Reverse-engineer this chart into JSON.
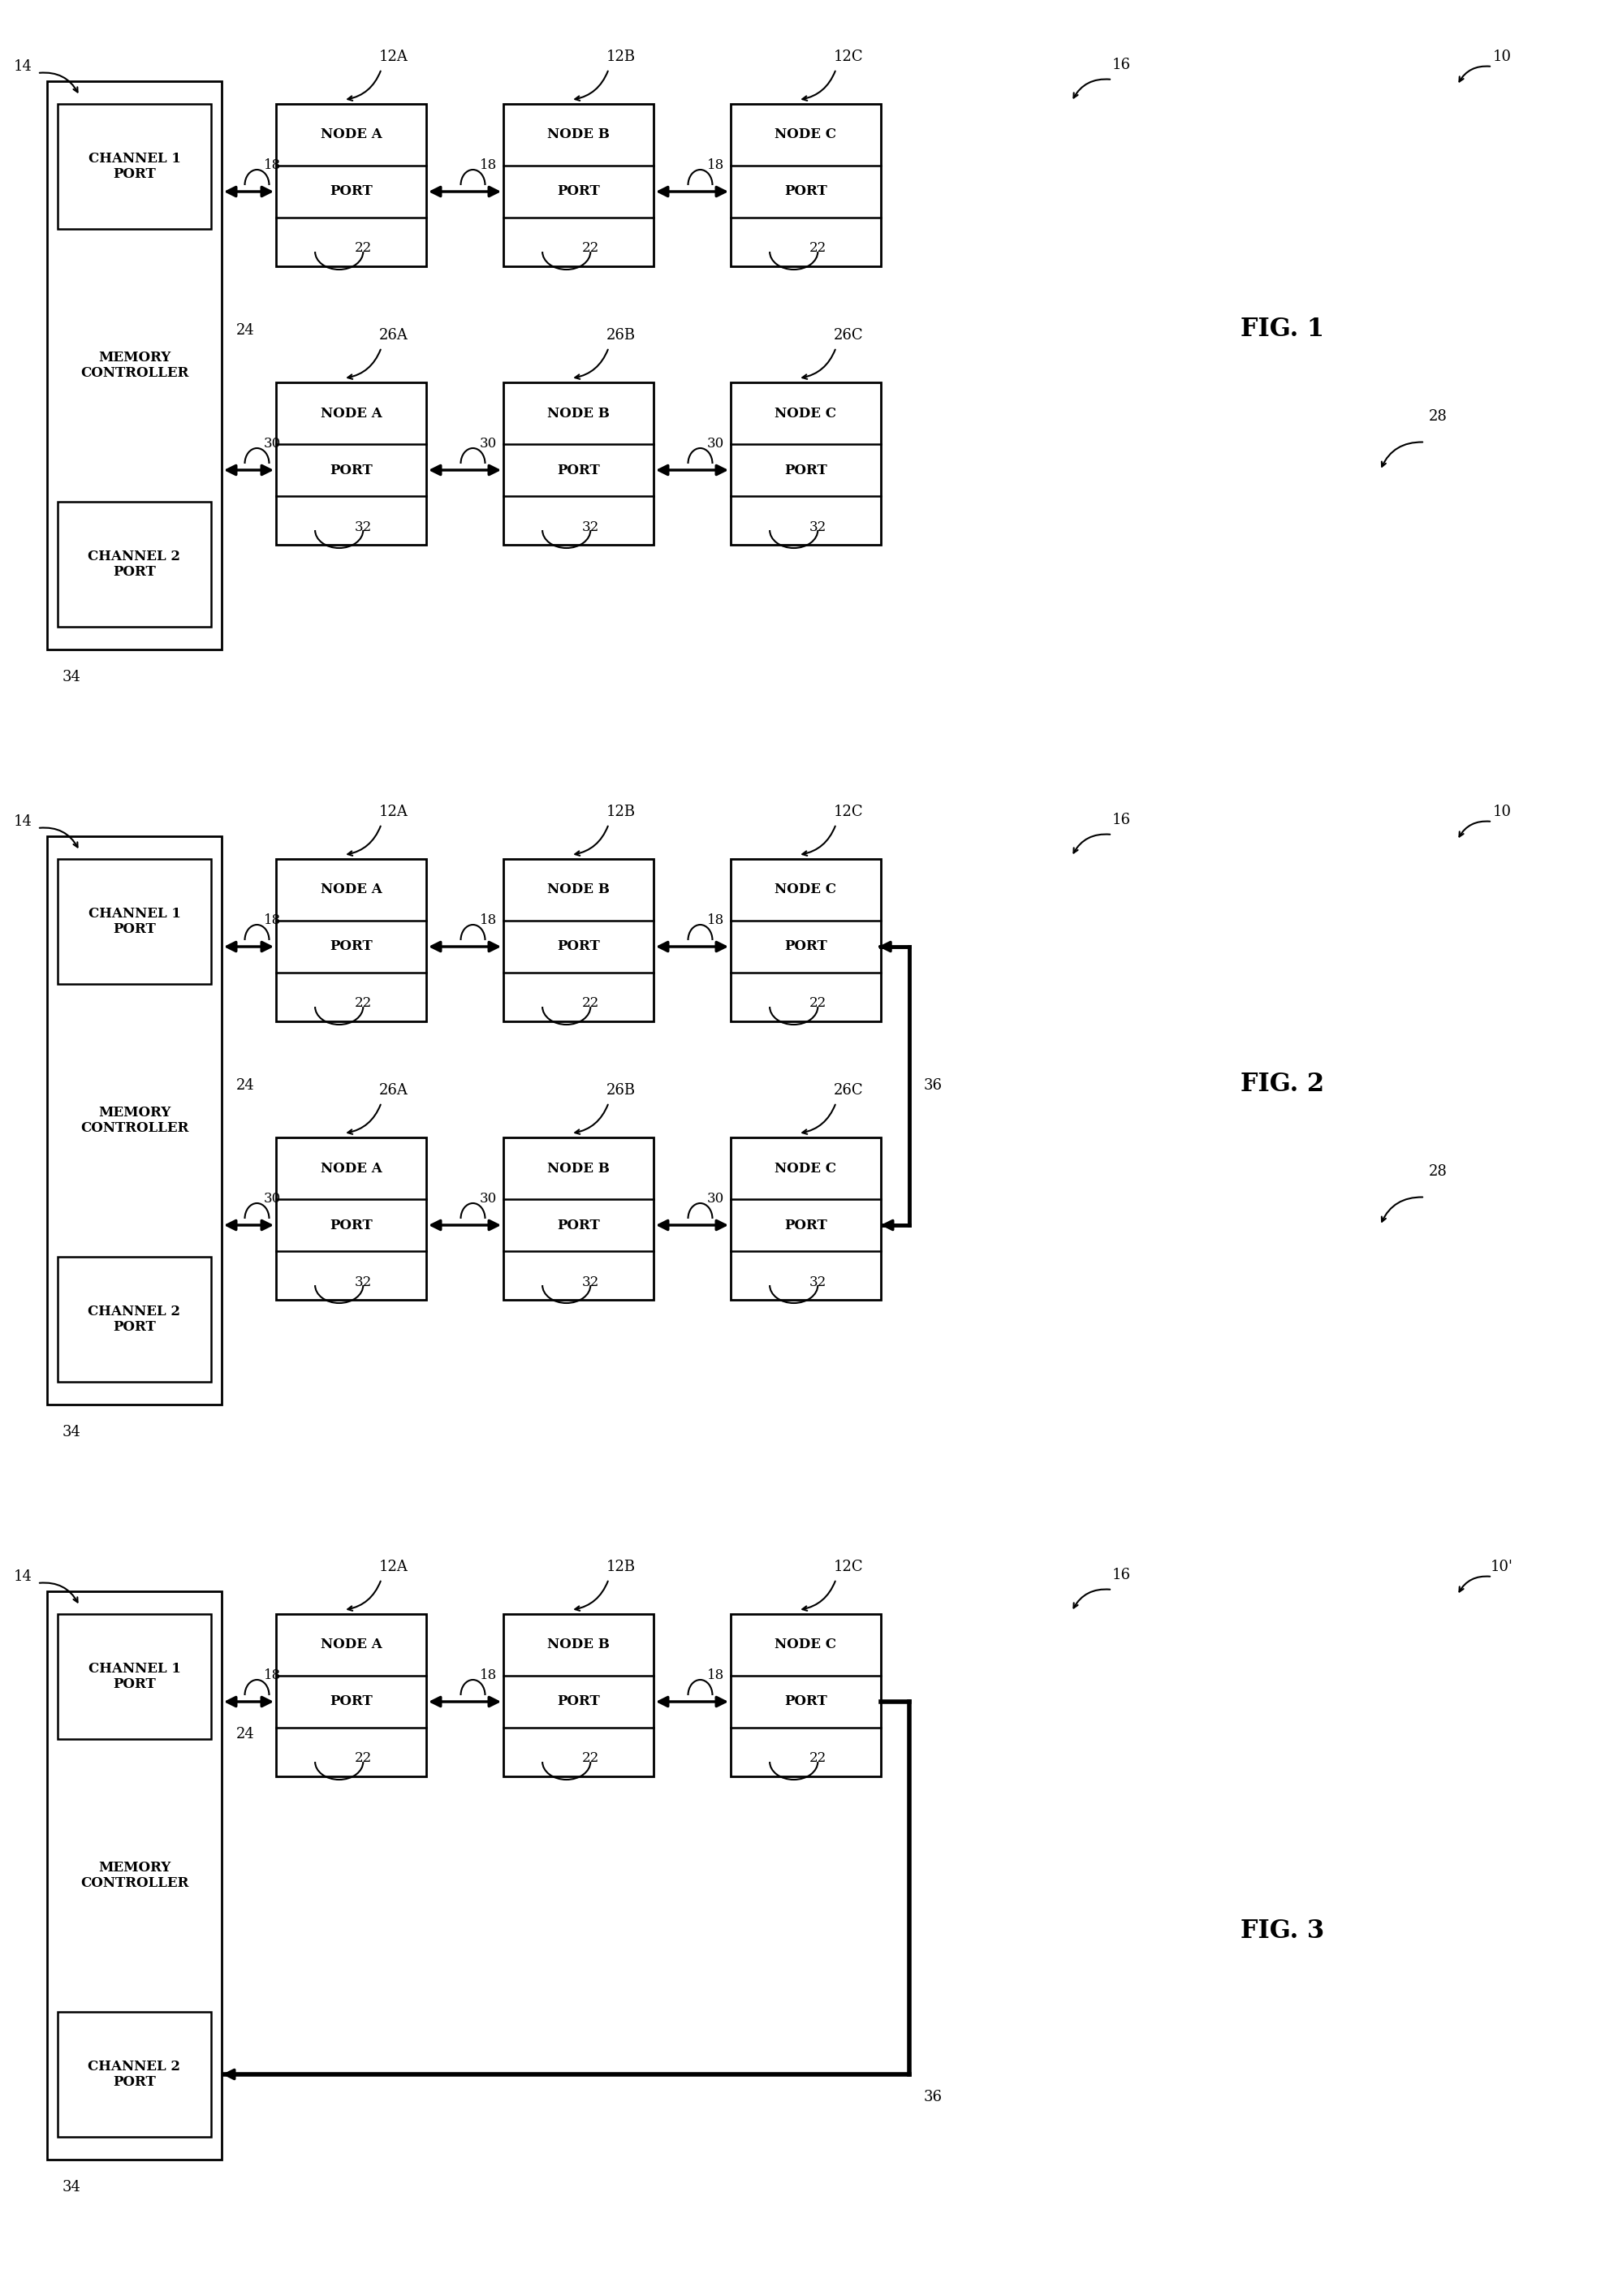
{
  "fig_width": 19.72,
  "fig_height": 28.28,
  "bg_color": "#ffffff",
  "line_color": "#000000",
  "node_names": [
    "A",
    "B",
    "C"
  ],
  "ch1_refs": [
    "12A",
    "12B",
    "12C"
  ],
  "ch2_refs": [
    "26A",
    "26B",
    "26C"
  ],
  "fig_labels": [
    "FIG. 1",
    "FIG. 2",
    "FIG. 3"
  ],
  "fig_nums": [
    "10",
    "10",
    "10'"
  ]
}
